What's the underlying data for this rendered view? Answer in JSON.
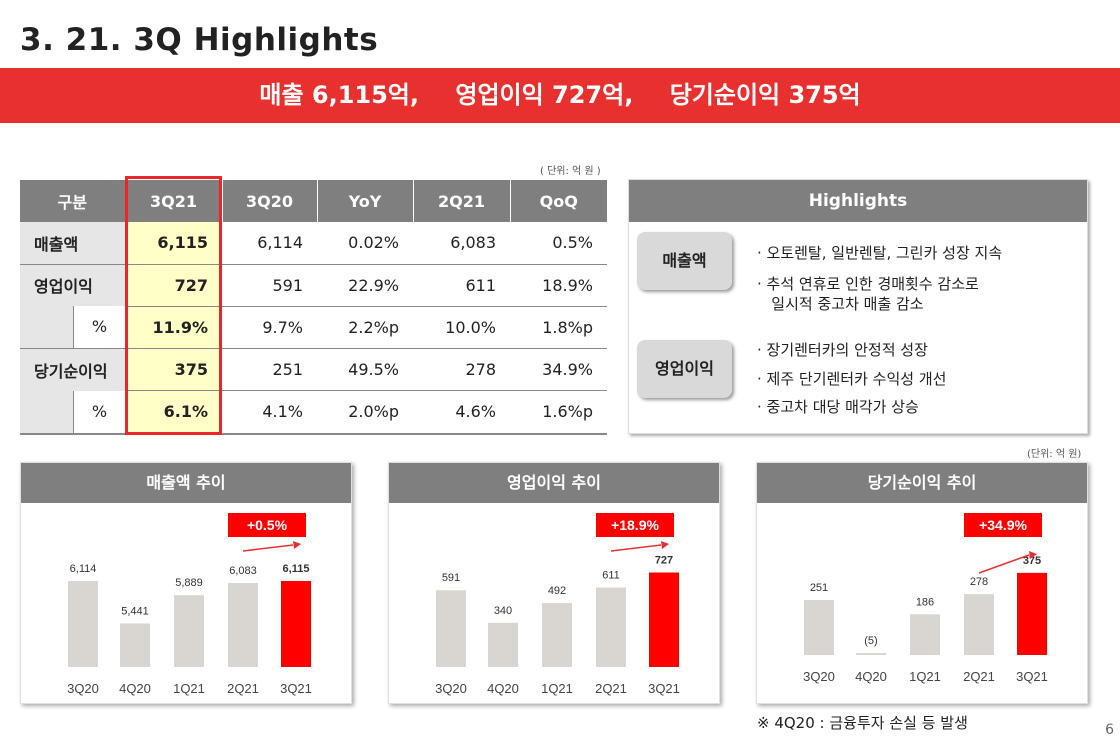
{
  "title": "3. 21. 3Q Highlights",
  "banner": [
    "매출 6,115억,",
    "영업이익 727억,",
    "당기순이익 375억"
  ],
  "unit_label": "( 단위: 억 원 )",
  "unit_label2": "(단위: 억 원)",
  "table": {
    "headers": [
      "구분",
      "3Q21",
      "3Q20",
      "YoY",
      "2Q21",
      "QoQ"
    ],
    "rows": [
      {
        "label": "매출액",
        "values": [
          "6,115",
          "6,114",
          "0.02%",
          "6,083",
          "0.5%"
        ]
      },
      {
        "label": "영업이익",
        "values": [
          "727",
          "591",
          "22.9%",
          "611",
          "18.9%"
        ]
      },
      {
        "label": "%",
        "values": [
          "11.9%",
          "9.7%",
          "2.2%p",
          "10.0%",
          "1.8%p"
        ]
      },
      {
        "label": "당기순이익",
        "values": [
          "375",
          "251",
          "49.5%",
          "278",
          "34.9%"
        ]
      },
      {
        "label": "%",
        "values": [
          "6.1%",
          "4.1%",
          "2.0%p",
          "4.6%",
          "1.6%p"
        ]
      }
    ]
  },
  "highlights": {
    "title": "Highlights",
    "categories": [
      {
        "name": "매출액",
        "bullets": [
          "· 오토렌탈, 일반렌탈, 그린카 성장 지속",
          "· 추석 연휴로 인한 경매횟수 감소로",
          "   일시적 중고차 매출 감소"
        ]
      },
      {
        "name": "영업이익",
        "bullets": [
          "· 장기렌터카의 안정적 성장",
          "· 제주 단기렌터카 수익성 개선",
          "· 중고차 대당 매각가 상승"
        ]
      }
    ]
  },
  "chart_data": [
    {
      "type": "bar",
      "title": "매출액 추이",
      "categories": [
        "3Q20",
        "4Q20",
        "1Q21",
        "2Q21",
        "3Q21"
      ],
      "values": [
        6114,
        5441,
        5889,
        6083,
        6115
      ],
      "labels": [
        "6,114",
        "5,441",
        "5,889",
        "6,083",
        "6,115"
      ],
      "growth": "+0.5%",
      "base": 4750,
      "max": 6400
    },
    {
      "type": "bar",
      "title": "영업이익 추이",
      "categories": [
        "3Q20",
        "4Q20",
        "1Q21",
        "2Q21",
        "3Q21"
      ],
      "values": [
        591,
        340,
        492,
        611,
        727
      ],
      "labels": [
        "591",
        "340",
        "492",
        "611",
        "727"
      ],
      "growth": "+18.9%",
      "base": 0,
      "max": 800
    },
    {
      "type": "bar",
      "title": "당기순이익 추이",
      "categories": [
        "3Q20",
        "4Q20",
        "1Q21",
        "2Q21",
        "3Q21"
      ],
      "values": [
        251,
        -5,
        186,
        278,
        375
      ],
      "labels": [
        "251",
        "(5)",
        "186",
        "278",
        "375"
      ],
      "growth": "+34.9%",
      "base": 0,
      "max": 420
    }
  ],
  "colors": {
    "accent": "#e8302f",
    "bar": "#d9d6d1",
    "bar_highlight": "#ff0000",
    "header": "#7f7f7f"
  },
  "note": "※ 4Q20 : 금융투자 손실 등 발생",
  "page_number": "6"
}
